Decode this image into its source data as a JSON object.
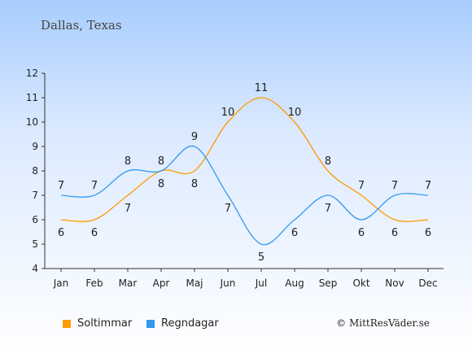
{
  "chart_data": {
    "type": "line",
    "title": "Dallas, Texas",
    "categories": [
      "Jan",
      "Feb",
      "Mar",
      "Apr",
      "Maj",
      "Jun",
      "Jul",
      "Aug",
      "Sep",
      "Okt",
      "Nov",
      "Dec"
    ],
    "ylim": [
      4,
      12
    ],
    "yticks": [
      "4",
      "5",
      "6",
      "7",
      "8",
      "9",
      "10",
      "11",
      "12"
    ],
    "grid": false,
    "legend_position": "bottom-left",
    "series": [
      {
        "name": "Soltimmar",
        "color": "#ff9900",
        "values": [
          6,
          6,
          7,
          8,
          8,
          10,
          11,
          10,
          8,
          7,
          6,
          6
        ]
      },
      {
        "name": "Regndagar",
        "color": "#3399ee",
        "values": [
          7,
          7,
          8,
          8,
          9,
          7,
          5,
          6,
          7,
          6,
          7,
          7
        ]
      }
    ]
  },
  "credit": "© MittResVäder.se"
}
